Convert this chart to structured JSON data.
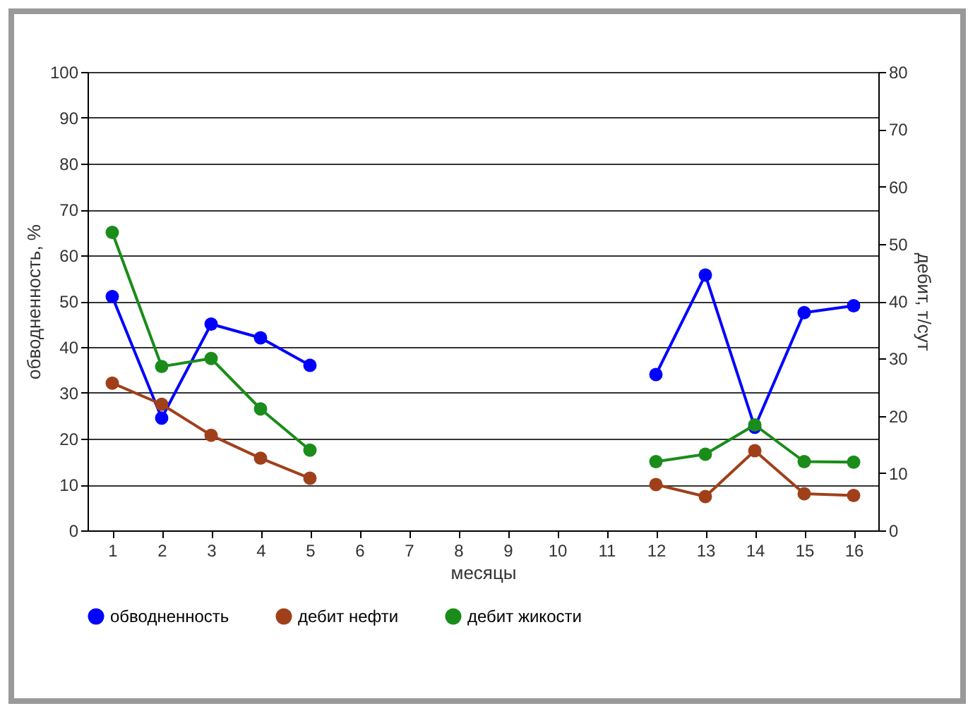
{
  "chart_data": {
    "type": "line",
    "xlabel": "месяцы",
    "ylabel": "обводненность, %",
    "y2label": "дебит, т/сут",
    "x": [
      1,
      2,
      3,
      4,
      5,
      6,
      7,
      8,
      9,
      10,
      11,
      12,
      13,
      14,
      15,
      16
    ],
    "series": [
      {
        "name": "обводненность",
        "color": "#0000ff",
        "values": [
          51,
          24.5,
          45,
          42,
          36,
          null,
          null,
          null,
          null,
          null,
          null,
          34,
          55.7,
          22.5,
          47.5,
          49
        ]
      },
      {
        "name": "дебит нефти",
        "color": "#a0401a",
        "axis": "y2",
        "values": [
          25.7,
          22,
          16.6,
          12.6,
          9.1,
          null,
          null,
          null,
          null,
          null,
          null,
          8,
          5.9,
          13.9,
          6.4,
          6.1
        ]
      },
      {
        "name": "дебит жикости",
        "color": "#1a8c1a",
        "axis": "y2",
        "values": [
          52,
          28.6,
          30,
          21.2,
          14,
          null,
          null,
          null,
          null,
          null,
          null,
          12,
          13.3,
          18.4,
          12,
          11.9
        ]
      }
    ],
    "xlim": [
      0.5,
      16.5
    ],
    "xticks": [
      1,
      2,
      3,
      4,
      5,
      6,
      7,
      8,
      9,
      10,
      11,
      12,
      13,
      14,
      15,
      16
    ],
    "ylim": [
      0,
      100
    ],
    "yticks": [
      0,
      10,
      20,
      30,
      40,
      50,
      60,
      70,
      80,
      90,
      100
    ],
    "y2lim": [
      0,
      80
    ],
    "y2ticks": [
      0,
      10,
      20,
      30,
      40,
      50,
      60,
      70,
      80
    ],
    "grid": "y",
    "legend": "bottom",
    "marker": "circle"
  }
}
